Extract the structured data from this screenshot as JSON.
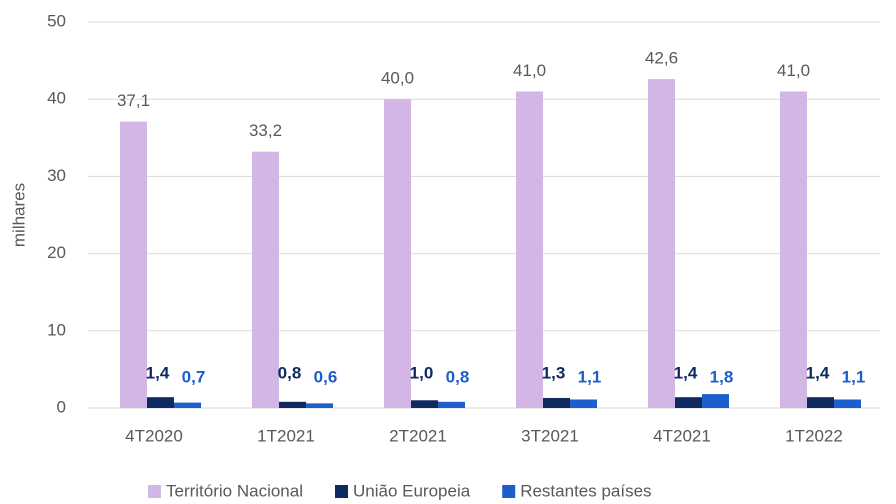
{
  "chart_data": {
    "type": "bar",
    "y_label": "milhares",
    "categories": [
      "4T2020",
      "1T2021",
      "2T2021",
      "3T2021",
      "4T2021",
      "1T2022"
    ],
    "series": [
      {
        "name": "Território Nacional",
        "color": "#d1b6e6",
        "values": [
          37.1,
          33.2,
          40.0,
          41.0,
          42.6,
          41.0
        ],
        "value_labels": [
          "37,1",
          "33,2",
          "40,0",
          "41,0",
          "42,6",
          "41,0"
        ]
      },
      {
        "name": "União Europeia",
        "color": "#0f2a5e",
        "values": [
          1.4,
          0.8,
          1.0,
          1.3,
          1.4,
          1.4
        ],
        "value_labels": [
          "1,4",
          "0,8",
          "1,0",
          "1,3",
          "1,4",
          "1,4"
        ]
      },
      {
        "name": "Restantes países",
        "color": "#1c5fcc",
        "values": [
          0.7,
          0.6,
          0.8,
          1.1,
          1.8,
          1.1
        ],
        "value_labels": [
          "0,7",
          "0,6",
          "0,8",
          "1,1",
          "1,8",
          "1,1"
        ]
      }
    ],
    "ylim": [
      0,
      50
    ],
    "yticks": [
      0,
      10,
      20,
      30,
      40,
      50
    ],
    "grid": true,
    "legend": "bottom"
  }
}
